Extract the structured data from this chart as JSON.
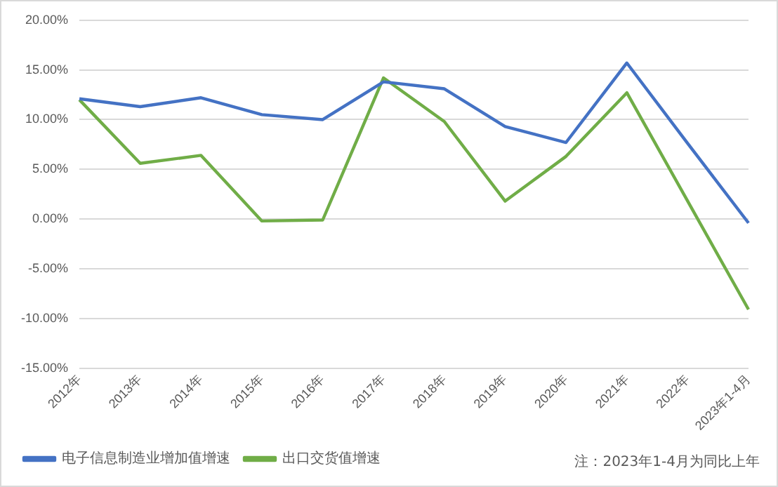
{
  "chart_data": {
    "type": "line",
    "categories": [
      "2012年",
      "2013年",
      "2014年",
      "2015年",
      "2016年",
      "2017年",
      "2018年",
      "2019年",
      "2020年",
      "2021年",
      "2022年",
      "2023年1-4月"
    ],
    "series": [
      {
        "name": "电子信息制造业增加值增速",
        "color": "#4472c4",
        "values": [
          12.1,
          11.3,
          12.2,
          10.5,
          10.0,
          13.8,
          13.1,
          9.3,
          7.7,
          15.7,
          7.6,
          -0.4
        ]
      },
      {
        "name": "出口交货值增速",
        "color": "#70ad47",
        "values": [
          12.0,
          5.6,
          6.4,
          -0.2,
          -0.1,
          14.2,
          9.8,
          1.8,
          6.3,
          12.7,
          1.8,
          -9.1
        ]
      }
    ],
    "ylim": [
      -15,
      20
    ],
    "yticks": [
      {
        "value": -15,
        "label": "-15.00%"
      },
      {
        "value": -10,
        "label": "-10.00%"
      },
      {
        "value": -5,
        "label": "-5.00%"
      },
      {
        "value": 0,
        "label": "0.00%"
      },
      {
        "value": 5,
        "label": "5.00%"
      },
      {
        "value": 10,
        "label": "10.00%"
      },
      {
        "value": 15,
        "label": "15.00%"
      },
      {
        "value": 20,
        "label": "20.00%"
      }
    ],
    "grid": "y",
    "legend": "bottom",
    "marker": "none",
    "line_style": "solid",
    "annotations": [
      "注：2023年1-4月为同比上年"
    ]
  }
}
